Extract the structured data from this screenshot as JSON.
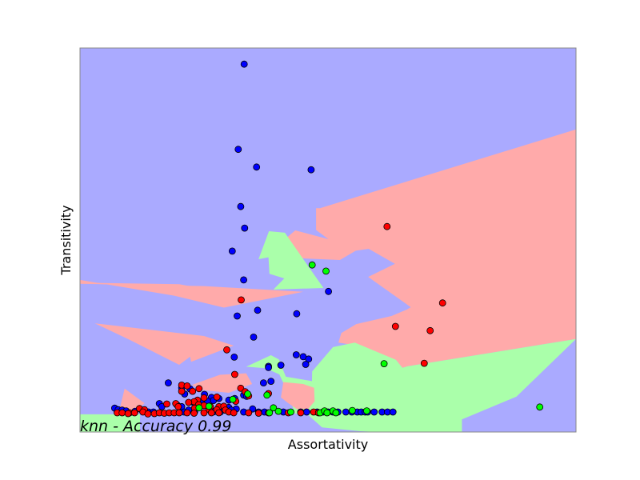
{
  "chart_data": {
    "type": "scatter",
    "title": "",
    "xlabel": "Assortativity",
    "ylabel": "Transitivity",
    "annotation": "knn - Accuracy 0.99",
    "xlim": [
      0,
      1
    ],
    "ylim": [
      0,
      1
    ],
    "grid": false,
    "ticks_visible": false,
    "colors": {
      "region_blue": "#AAAAFF",
      "region_red": "#FFAAAA",
      "region_green": "#AAFFAA",
      "point_blue": "#0000FF",
      "point_red": "#FF0000",
      "point_green": "#00FF00",
      "point_edge": "#000000"
    },
    "decision_regions": [
      {
        "class": "red",
        "polygon": [
          [
            0.476,
            0.583
          ],
          [
            0.484,
            0.583
          ],
          [
            1.0,
            0.788
          ],
          [
            1.0,
            0.242
          ],
          [
            0.66,
            0.171
          ],
          [
            0.65,
            0.167
          ],
          [
            0.637,
            0.188
          ],
          [
            0.54,
            0.229
          ],
          [
            0.521,
            0.233
          ],
          [
            0.527,
            0.258
          ],
          [
            0.557,
            0.281
          ],
          [
            0.628,
            0.302
          ],
          [
            0.659,
            0.319
          ],
          [
            0.667,
            0.325
          ],
          [
            0.581,
            0.404
          ],
          [
            0.635,
            0.438
          ],
          [
            0.582,
            0.477
          ],
          [
            0.556,
            0.472
          ],
          [
            0.524,
            0.448
          ],
          [
            0.449,
            0.452
          ],
          [
            0.409,
            0.49
          ],
          [
            0.41,
            0.499
          ],
          [
            0.434,
            0.525
          ],
          [
            0.501,
            0.502
          ],
          [
            0.476,
            0.526
          ]
        ]
      },
      {
        "class": "green",
        "polygon": [
          [
            0.0,
            0.0
          ],
          [
            0.0,
            0.046
          ],
          [
            0.121,
            0.046
          ],
          [
            0.121,
            0.0
          ]
        ]
      },
      {
        "class": "green",
        "polygon": [
          [
            0.381,
            0.523
          ],
          [
            0.413,
            0.519
          ],
          [
            0.467,
            0.419
          ],
          [
            0.491,
            0.375
          ],
          [
            0.39,
            0.371
          ],
          [
            0.412,
            0.4
          ],
          [
            0.382,
            0.412
          ],
          [
            0.38,
            0.455
          ],
          [
            0.36,
            0.45
          ]
        ]
      },
      {
        "class": "green",
        "polygon": [
          [
            0.554,
            0.233
          ],
          [
            0.51,
            0.221
          ],
          [
            0.468,
            0.158
          ],
          [
            0.467,
            0.075
          ],
          [
            0.457,
            0.048
          ],
          [
            0.488,
            0.012
          ],
          [
            0.565,
            0.002
          ],
          [
            0.603,
            0.0
          ],
          [
            0.77,
            0.0
          ],
          [
            0.77,
            0.033
          ],
          [
            0.88,
            0.092
          ],
          [
            1.0,
            0.242
          ],
          [
            1.0,
            0.242
          ],
          [
            0.66,
            0.171
          ],
          [
            0.65,
            0.167
          ],
          [
            0.637,
            0.188
          ]
        ]
      },
      {
        "class": "green",
        "polygon": [
          [
            0.335,
            0.17
          ],
          [
            0.374,
            0.166
          ],
          [
            0.402,
            0.15
          ],
          [
            0.42,
            0.1
          ],
          [
            0.433,
            0.048
          ],
          [
            0.52,
            0.044
          ],
          [
            0.527,
            0.094
          ],
          [
            0.47,
            0.132
          ],
          [
            0.415,
            0.144
          ],
          [
            0.401,
            0.189
          ],
          [
            0.385,
            0.2
          ]
        ]
      },
      {
        "class": "red",
        "polygon": [
          [
            0.0,
            0.388
          ],
          [
            0.198,
            0.375
          ],
          [
            0.302,
            0.338
          ],
          [
            0.413,
            0.363
          ],
          [
            0.225,
            0.379
          ],
          [
            0.2,
            0.385
          ],
          [
            0.0,
            0.389
          ]
        ]
      },
      {
        "class": "red",
        "polygon": [
          [
            0.0,
            0.396
          ],
          [
            0.0,
            0.386
          ],
          [
            0.25,
            0.38
          ],
          [
            0.45,
            0.365
          ],
          [
            0.29,
            0.324
          ],
          [
            0.19,
            0.355
          ]
        ]
      },
      {
        "class": "red",
        "polygon": [
          [
            0.03,
            0.283
          ],
          [
            0.25,
            0.25
          ],
          [
            0.31,
            0.225
          ],
          [
            0.224,
            0.183
          ],
          [
            0.222,
            0.196
          ],
          [
            0.2,
            0.175
          ],
          [
            0.1,
            0.24
          ]
        ]
      },
      {
        "class": "red",
        "polygon": [
          [
            0.226,
            0.123
          ],
          [
            0.282,
            0.149
          ],
          [
            0.335,
            0.153
          ],
          [
            0.347,
            0.125
          ],
          [
            0.3,
            0.102
          ],
          [
            0.242,
            0.11
          ]
        ]
      },
      {
        "class": "red",
        "polygon": [
          [
            0.09,
            0.113
          ],
          [
            0.13,
            0.075
          ],
          [
            0.1,
            0.04
          ],
          [
            0.08,
            0.06
          ]
        ]
      },
      {
        "class": "red",
        "polygon": [
          [
            0.41,
            0.13
          ],
          [
            0.45,
            0.125
          ],
          [
            0.472,
            0.115
          ],
          [
            0.473,
            0.08
          ],
          [
            0.46,
            0.06
          ],
          [
            0.437,
            0.06
          ],
          [
            0.42,
            0.075
          ],
          [
            0.405,
            0.09
          ]
        ]
      }
    ],
    "series": [
      {
        "class": "blue",
        "points": [
          [
            0.331,
            0.958
          ],
          [
            0.319,
            0.736
          ],
          [
            0.356,
            0.69
          ],
          [
            0.466,
            0.683
          ],
          [
            0.324,
            0.587
          ],
          [
            0.332,
            0.531
          ],
          [
            0.307,
            0.471
          ],
          [
            0.33,
            0.396
          ],
          [
            0.501,
            0.366
          ],
          [
            0.358,
            0.317
          ],
          [
            0.437,
            0.308
          ],
          [
            0.317,
            0.302
          ],
          [
            0.35,
            0.247
          ],
          [
            0.436,
            0.201
          ],
          [
            0.45,
            0.196
          ],
          [
            0.311,
            0.195
          ],
          [
            0.461,
            0.19
          ],
          [
            0.405,
            0.174
          ],
          [
            0.455,
            0.176
          ],
          [
            0.38,
            0.171
          ],
          [
            0.38,
            0.168
          ],
          [
            0.385,
            0.132
          ],
          [
            0.37,
            0.128
          ],
          [
            0.178,
            0.128
          ],
          [
            0.205,
            0.115
          ],
          [
            0.222,
            0.112
          ],
          [
            0.211,
            0.099
          ],
          [
            0.251,
            0.098
          ],
          [
            0.33,
            0.096
          ],
          [
            0.336,
            0.093
          ],
          [
            0.265,
            0.09
          ],
          [
            0.28,
            0.087
          ],
          [
            0.312,
            0.087
          ],
          [
            0.3,
            0.083
          ],
          [
            0.269,
            0.082
          ],
          [
            0.257,
            0.08
          ],
          [
            0.244,
            0.077
          ],
          [
            0.231,
            0.074
          ],
          [
            0.16,
            0.074
          ],
          [
            0.165,
            0.066
          ],
          [
            0.196,
            0.07
          ],
          [
            0.205,
            0.066
          ],
          [
            0.3,
            0.064
          ],
          [
            0.315,
            0.06
          ],
          [
            0.348,
            0.06
          ],
          [
            0.07,
            0.062
          ],
          [
            0.077,
            0.058
          ],
          [
            0.085,
            0.057
          ],
          [
            0.093,
            0.055
          ],
          [
            0.111,
            0.054
          ],
          [
            0.126,
            0.055
          ],
          [
            0.138,
            0.052
          ],
          [
            0.148,
            0.052
          ],
          [
            0.21,
            0.052
          ],
          [
            0.219,
            0.057
          ],
          [
            0.231,
            0.052
          ],
          [
            0.27,
            0.053
          ],
          [
            0.283,
            0.052
          ],
          [
            0.293,
            0.057
          ],
          [
            0.305,
            0.057
          ],
          [
            0.33,
            0.052
          ],
          [
            0.36,
            0.052
          ],
          [
            0.372,
            0.052
          ],
          [
            0.41,
            0.052
          ],
          [
            0.445,
            0.052
          ],
          [
            0.457,
            0.052
          ],
          [
            0.478,
            0.052
          ],
          [
            0.49,
            0.052
          ],
          [
            0.5,
            0.052
          ],
          [
            0.51,
            0.052
          ],
          [
            0.52,
            0.052
          ],
          [
            0.536,
            0.052
          ],
          [
            0.548,
            0.052
          ],
          [
            0.559,
            0.052
          ],
          [
            0.567,
            0.052
          ],
          [
            0.575,
            0.052
          ],
          [
            0.58,
            0.052
          ],
          [
            0.593,
            0.052
          ],
          [
            0.609,
            0.052
          ],
          [
            0.62,
            0.052
          ],
          [
            0.631,
            0.052
          ]
        ]
      },
      {
        "class": "red",
        "points": [
          [
            0.619,
            0.535
          ],
          [
            0.325,
            0.344
          ],
          [
            0.731,
            0.336
          ],
          [
            0.636,
            0.275
          ],
          [
            0.706,
            0.264
          ],
          [
            0.694,
            0.179
          ],
          [
            0.296,
            0.214
          ],
          [
            0.312,
            0.15
          ],
          [
            0.205,
            0.122
          ],
          [
            0.216,
            0.12
          ],
          [
            0.205,
            0.106
          ],
          [
            0.24,
            0.113
          ],
          [
            0.227,
            0.106
          ],
          [
            0.324,
            0.114
          ],
          [
            0.333,
            0.105
          ],
          [
            0.38,
            0.1
          ],
          [
            0.34,
            0.094
          ],
          [
            0.25,
            0.089
          ],
          [
            0.276,
            0.091
          ],
          [
            0.237,
            0.083
          ],
          [
            0.23,
            0.079
          ],
          [
            0.219,
            0.077
          ],
          [
            0.314,
            0.08
          ],
          [
            0.193,
            0.074
          ],
          [
            0.175,
            0.073
          ],
          [
            0.239,
            0.071
          ],
          [
            0.25,
            0.069
          ],
          [
            0.263,
            0.066
          ],
          [
            0.28,
            0.066
          ],
          [
            0.29,
            0.067
          ],
          [
            0.198,
            0.066
          ],
          [
            0.231,
            0.062
          ],
          [
            0.26,
            0.059
          ],
          [
            0.276,
            0.058
          ],
          [
            0.293,
            0.057
          ],
          [
            0.3,
            0.052
          ],
          [
            0.31,
            0.05
          ],
          [
            0.12,
            0.061
          ],
          [
            0.13,
            0.058
          ],
          [
            0.127,
            0.052
          ],
          [
            0.1,
            0.05
          ],
          [
            0.075,
            0.05
          ],
          [
            0.085,
            0.05
          ],
          [
            0.097,
            0.048
          ],
          [
            0.11,
            0.05
          ],
          [
            0.137,
            0.047
          ],
          [
            0.15,
            0.048
          ],
          [
            0.16,
            0.05
          ],
          [
            0.17,
            0.049
          ],
          [
            0.18,
            0.05
          ],
          [
            0.19,
            0.05
          ],
          [
            0.2,
            0.05
          ],
          [
            0.216,
            0.05
          ],
          [
            0.23,
            0.049
          ],
          [
            0.25,
            0.05
          ],
          [
            0.265,
            0.05
          ],
          [
            0.28,
            0.05
          ],
          [
            0.34,
            0.05
          ],
          [
            0.36,
            0.049
          ],
          [
            0.38,
            0.05
          ],
          [
            0.42,
            0.05
          ],
          [
            0.445,
            0.05
          ],
          [
            0.471,
            0.052
          ],
          [
            0.481,
            0.05
          ]
        ]
      },
      {
        "class": "green",
        "points": [
          [
            0.468,
            0.435
          ],
          [
            0.496,
            0.419
          ],
          [
            0.613,
            0.178
          ],
          [
            0.338,
            0.099
          ],
          [
            0.377,
            0.096
          ],
          [
            0.308,
            0.085
          ],
          [
            0.26,
            0.067
          ],
          [
            0.24,
            0.063
          ],
          [
            0.39,
            0.063
          ],
          [
            0.382,
            0.05
          ],
          [
            0.4,
            0.054
          ],
          [
            0.425,
            0.052
          ],
          [
            0.484,
            0.05
          ],
          [
            0.493,
            0.055
          ],
          [
            0.498,
            0.05
          ],
          [
            0.51,
            0.055
          ],
          [
            0.516,
            0.05
          ],
          [
            0.549,
            0.056
          ],
          [
            0.578,
            0.055
          ],
          [
            0.927,
            0.065
          ]
        ]
      }
    ]
  }
}
